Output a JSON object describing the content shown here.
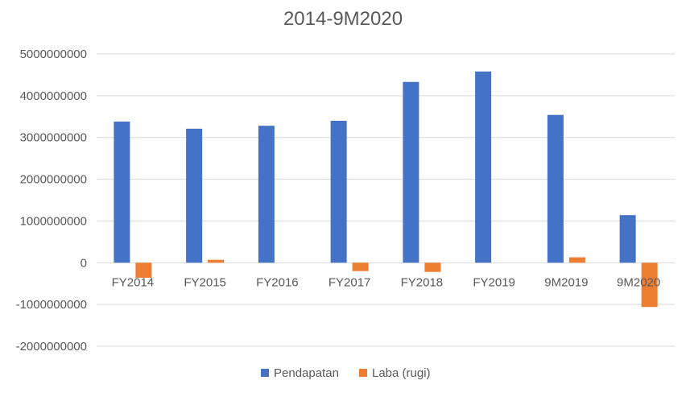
{
  "chart_data": {
    "type": "bar",
    "title": "2014-9M2020",
    "categories": [
      "FY2014",
      "FY2015",
      "FY2016",
      "FY2017",
      "FY2018",
      "FY2019",
      "9M2019",
      "9M2020"
    ],
    "series": [
      {
        "name": "Pendapatan",
        "color": "#4472C4",
        "values": [
          3380000000,
          3210000000,
          3280000000,
          3400000000,
          4330000000,
          4580000000,
          3540000000,
          1140000000
        ]
      },
      {
        "name": "Laba (rugi)",
        "color": "#ED7D31",
        "values": [
          -360000000,
          70000000,
          0,
          -200000000,
          -220000000,
          0,
          130000000,
          -1060000000
        ]
      }
    ],
    "yticks": [
      "5000000000",
      "4000000000",
      "3000000000",
      "2000000000",
      "1000000000",
      "0",
      "-1000000000",
      "-2000000000"
    ],
    "ylim": [
      -2000000000,
      5000000000
    ],
    "grid": true,
    "legend_position": "bottom",
    "grid_color": "#D9D9D9"
  }
}
